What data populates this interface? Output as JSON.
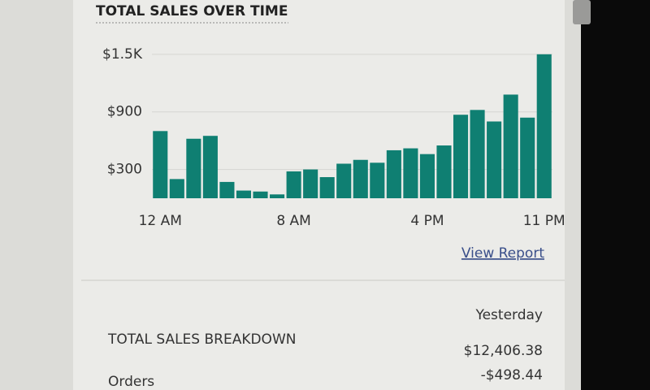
{
  "chart_data": {
    "type": "bar",
    "title": "TOTAL SALES OVER TIME",
    "categories": [
      "12 AM",
      null,
      null,
      null,
      null,
      null,
      null,
      null,
      "8 AM",
      null,
      null,
      null,
      null,
      null,
      null,
      null,
      "4 PM",
      null,
      null,
      null,
      null,
      null,
      null,
      "11 PM"
    ],
    "values": [
      700,
      200,
      620,
      650,
      170,
      80,
      70,
      40,
      280,
      300,
      220,
      360,
      400,
      370,
      500,
      520,
      460,
      550,
      870,
      920,
      800,
      1080,
      840,
      1500
    ],
    "color": "#0f7f72",
    "ylim": [
      0,
      1600
    ],
    "yticks": [
      {
        "value": 300,
        "label": "$300"
      },
      {
        "value": 900,
        "label": "$900"
      },
      {
        "value": 1500,
        "label": "$1.5K"
      }
    ],
    "grid": true
  },
  "link": "View Report",
  "breakdown": {
    "title": "TOTAL SALES BREAKDOWN",
    "period": "Yesterday",
    "total": "$12,406.38",
    "rows": [
      {
        "label": "Orders",
        "value": "-$498.44"
      }
    ]
  }
}
